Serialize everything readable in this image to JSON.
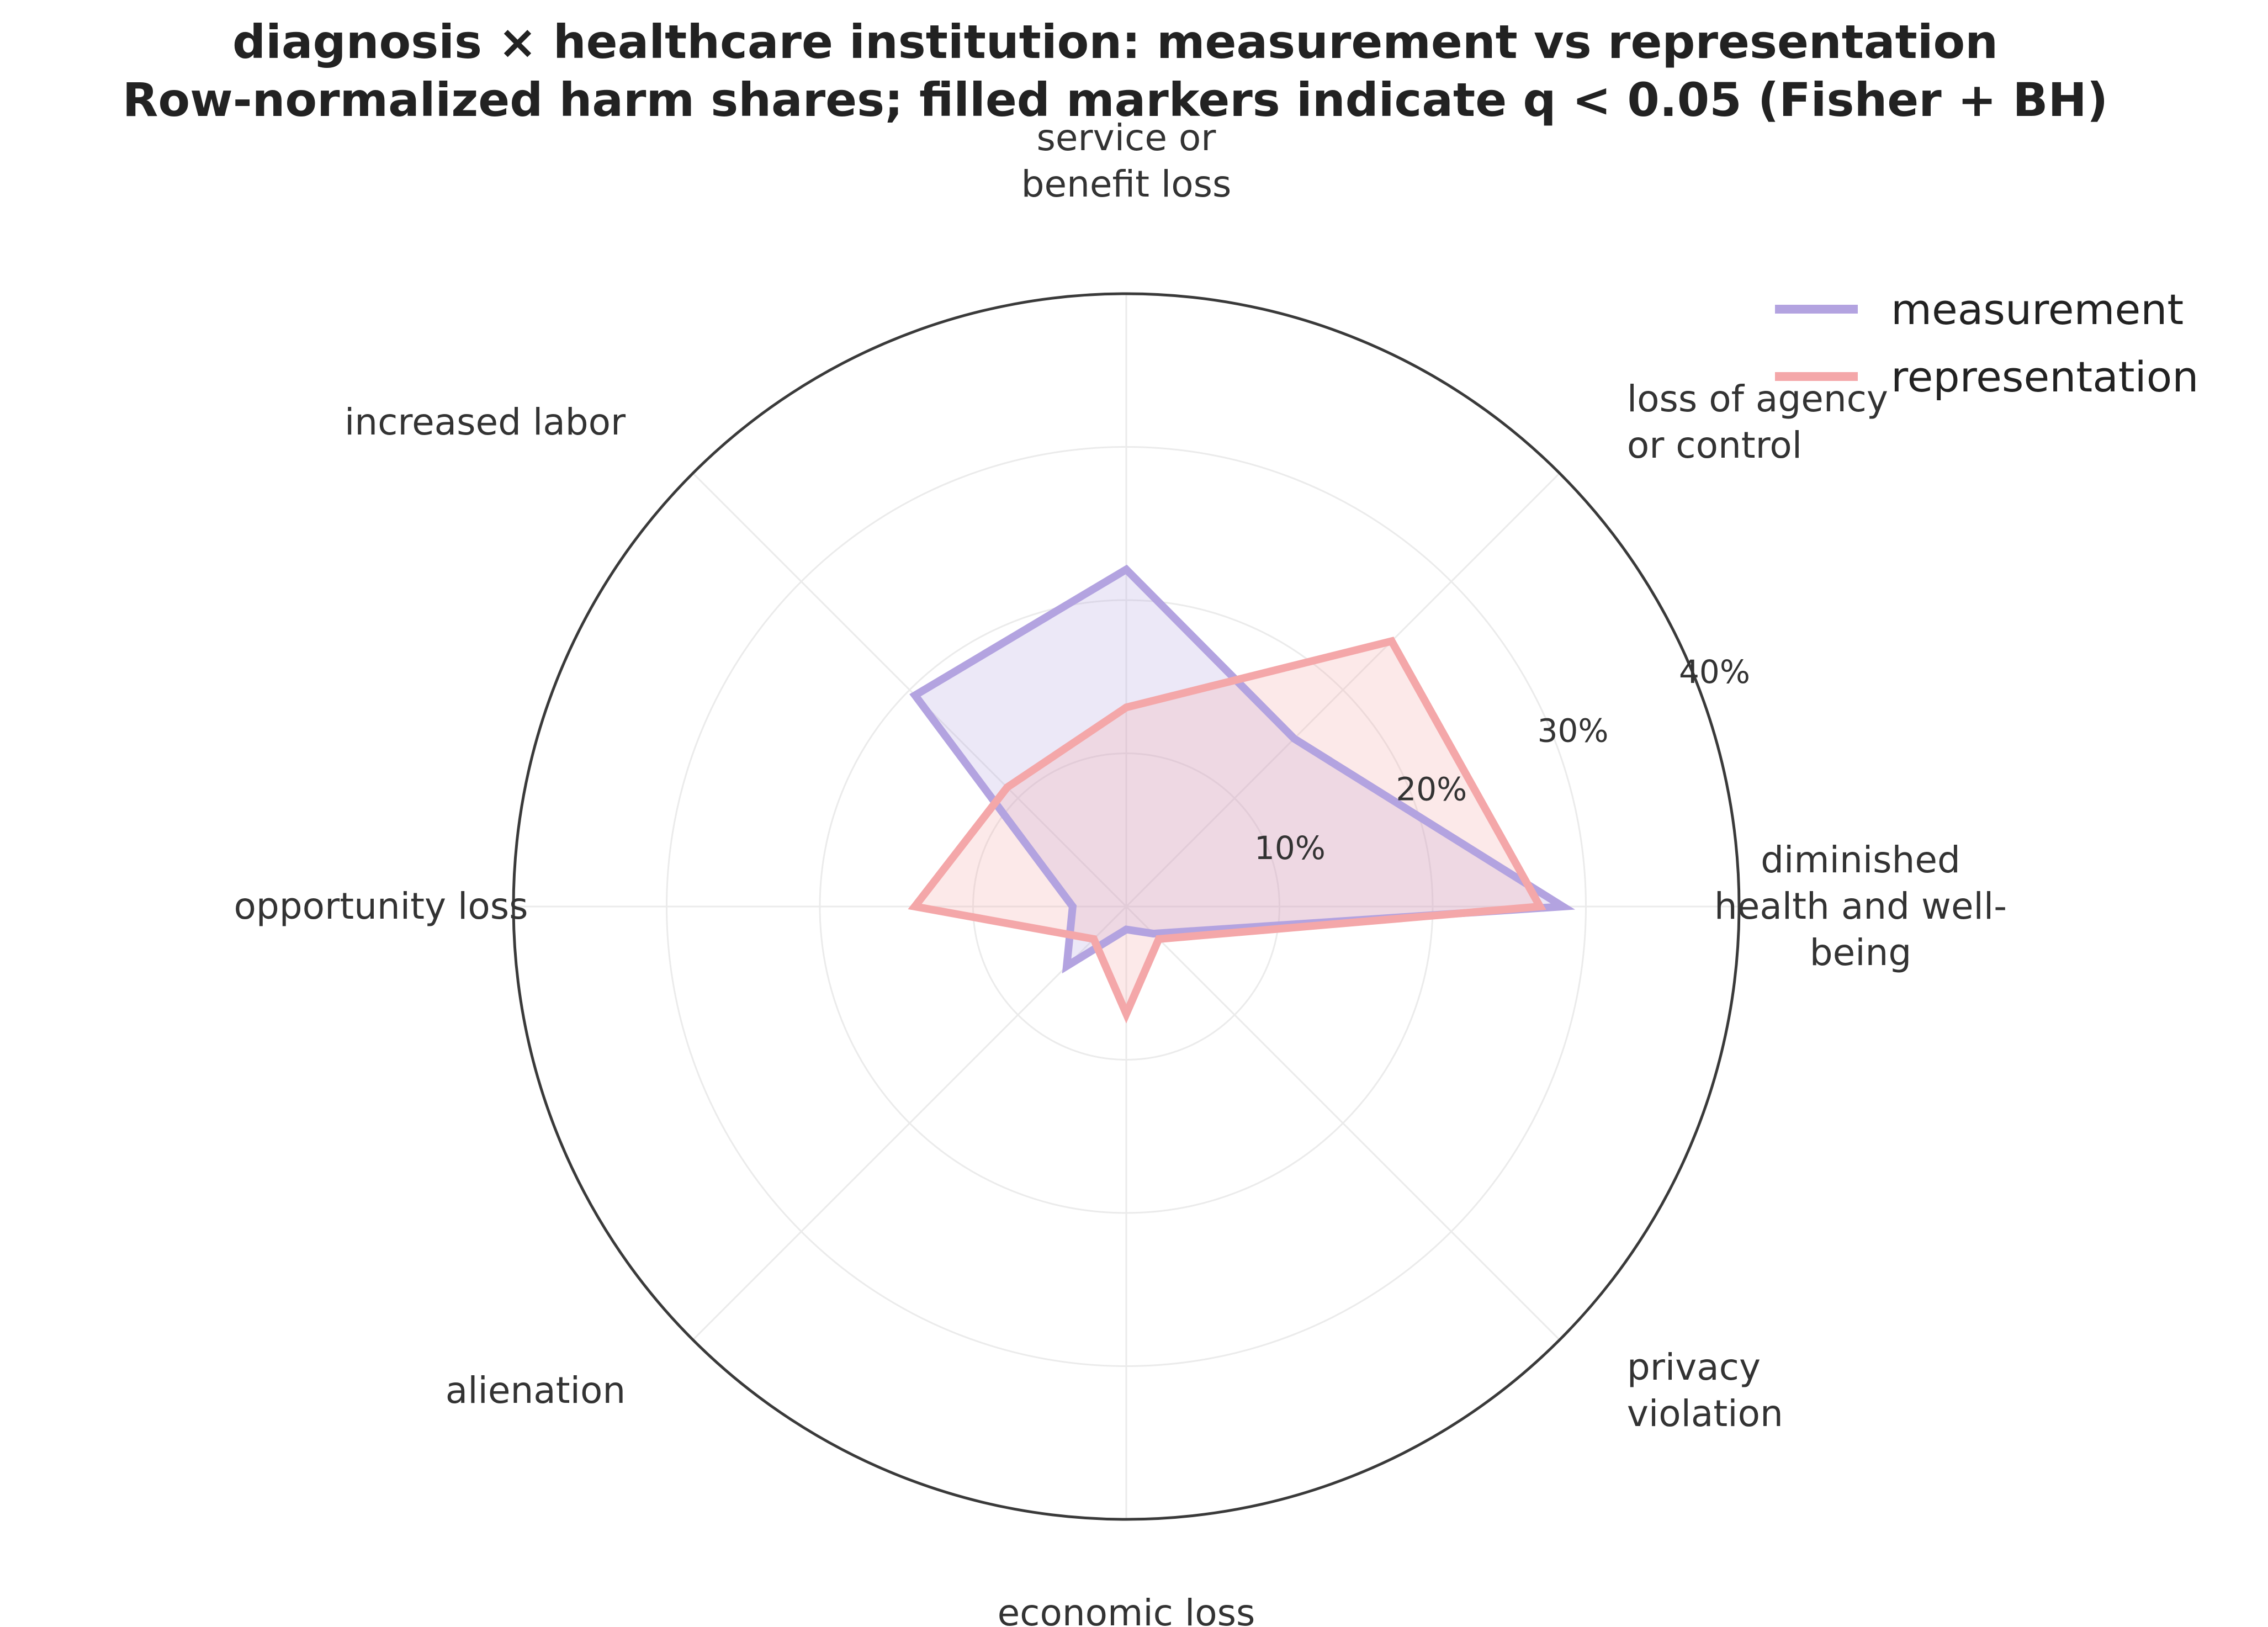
{
  "chart_data": {
    "type": "radar",
    "title_lines": [
      "diagnosis × healthcare institution: measurement vs representation",
      "Row-normalized harm shares; filled markers indicate q < 0.05 (Fisher + BH)"
    ],
    "categories": [
      "diminished health and well-being",
      "loss of agency or control",
      "service or benefit loss",
      "increased labor",
      "opportunity loss",
      "alienation",
      "economic loss",
      "privacy violation"
    ],
    "category_label_lines": [
      [
        "diminished",
        "health and well-",
        "being"
      ],
      [
        "loss of agency",
        "or control"
      ],
      [
        "service or",
        "benefit loss"
      ],
      [
        "increased labor"
      ],
      [
        "opportunity loss"
      ],
      [
        "alienation"
      ],
      [
        "economic loss"
      ],
      [
        "privacy",
        "violation"
      ]
    ],
    "radial_ticks": [
      "10%",
      "20%",
      "30%",
      "40%"
    ],
    "radial_tick_values": [
      10,
      20,
      30,
      40
    ],
    "rlim": [
      0,
      40
    ],
    "grid": true,
    "legend_position": "top-right",
    "series": [
      {
        "name": "measurement",
        "color": "#b3a3e0",
        "values": [
          28.5,
          15.5,
          22,
          19.5,
          3.5,
          5.5,
          1.5,
          2.5
        ]
      },
      {
        "name": "representation",
        "color": "#f4a7a9",
        "values": [
          27,
          24.5,
          13,
          11,
          13.8,
          3,
          7,
          3
        ]
      }
    ]
  }
}
